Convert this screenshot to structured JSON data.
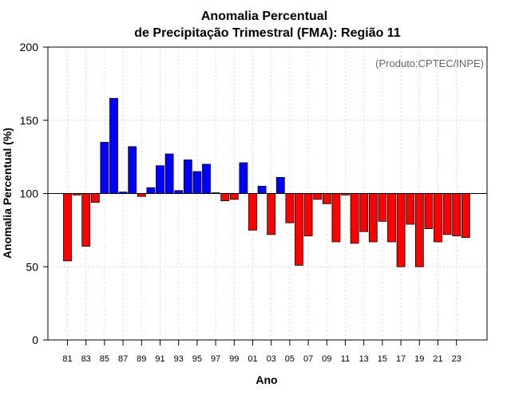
{
  "chart_data": {
    "type": "bar",
    "title": "Anomalia Percentual",
    "subtitle": "de Precipitação Trimestral (FMA): Região 11",
    "xlabel": "Ano",
    "ylabel": "Anomalia Percentual (%)",
    "annotation": "(Produto:CPTEC/INPE)",
    "baseline": 100,
    "ylim": [
      0,
      200
    ],
    "yticks": [
      "0",
      "50",
      "100",
      "150",
      "200"
    ],
    "above_color": "#0000ff",
    "below_color": "#ff0000",
    "categories": [
      "81",
      "82",
      "83",
      "84",
      "85",
      "86",
      "87",
      "88",
      "89",
      "90",
      "91",
      "92",
      "93",
      "94",
      "95",
      "96",
      "97",
      "98",
      "99",
      "00",
      "01",
      "02",
      "03",
      "04",
      "05",
      "06",
      "07",
      "08",
      "09",
      "10",
      "11",
      "12",
      "13",
      "14",
      "15",
      "16",
      "17",
      "18",
      "19",
      "20",
      "21",
      "22",
      "23",
      "24"
    ],
    "xtick_labels": [
      "81",
      "83",
      "85",
      "87",
      "89",
      "91",
      "93",
      "95",
      "97",
      "99",
      "01",
      "03",
      "05",
      "07",
      "09",
      "11",
      "13",
      "15",
      "17",
      "19",
      "21",
      "23"
    ],
    "values": [
      54,
      99,
      64,
      94,
      135,
      165,
      101,
      132,
      98,
      104,
      119,
      127,
      102,
      123,
      115,
      120,
      100.5,
      95,
      96,
      121,
      75,
      105,
      72,
      111,
      80,
      51,
      71,
      96,
      93,
      67,
      99,
      66,
      74,
      67,
      81,
      67,
      50,
      79,
      50,
      76,
      67,
      72,
      71,
      70
    ]
  }
}
